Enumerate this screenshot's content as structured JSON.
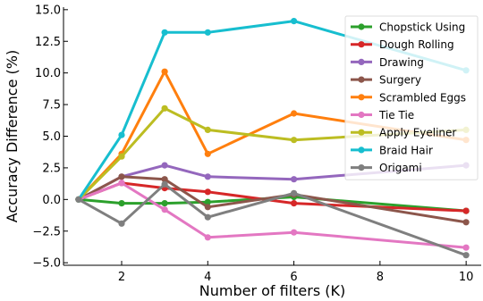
{
  "chart_data": {
    "type": "line",
    "title": "",
    "xlabel": "Number of filters (K)",
    "ylabel": "Accuracy Difference (%)",
    "xlim": [
      0.65,
      10.35
    ],
    "ylim": [
      -5.2,
      15.2
    ],
    "xticks": [
      2,
      4,
      6,
      8,
      10
    ],
    "xtick_labels": [
      "2",
      "4",
      "6",
      "8",
      "10"
    ],
    "yticks": [
      -5.0,
      -2.5,
      0.0,
      2.5,
      5.0,
      7.5,
      10.0,
      12.5,
      15.0
    ],
    "ytick_labels": [
      "−5.0",
      "−2.5",
      "0.0",
      "2.5",
      "5.0",
      "7.5",
      "10.0",
      "12.5",
      "15.0"
    ],
    "grid": false,
    "legend_position": "upper right",
    "x": [
      1,
      2,
      3,
      4,
      6,
      10
    ],
    "series": [
      {
        "name": "Chopstick Using",
        "color": "#2ca02c",
        "values": [
          0.0,
          -0.3,
          -0.3,
          -0.2,
          0.2,
          -0.9
        ]
      },
      {
        "name": "Dough Rolling",
        "color": "#d62728",
        "values": [
          0.0,
          1.3,
          0.9,
          0.6,
          -0.3,
          -0.9
        ]
      },
      {
        "name": "Drawing",
        "color": "#9467bd",
        "values": [
          0.0,
          1.8,
          2.7,
          1.8,
          1.6,
          2.7
        ]
      },
      {
        "name": "Surgery",
        "color": "#8c564b",
        "values": [
          0.0,
          1.8,
          1.6,
          -0.6,
          0.4,
          -1.8
        ]
      },
      {
        "name": "Scrambled Eggs",
        "color": "#ff7f0e",
        "values": [
          0.0,
          3.6,
          10.1,
          3.6,
          6.8,
          4.7
        ]
      },
      {
        "name": "Tie Tie",
        "color": "#e377c2",
        "values": [
          0.0,
          1.3,
          -0.8,
          -3.0,
          -2.6,
          -3.8
        ]
      },
      {
        "name": "Apply Eyeliner",
        "color": "#bcbd22",
        "values": [
          0.0,
          3.4,
          7.2,
          5.5,
          4.7,
          5.5
        ]
      },
      {
        "name": "Braid Hair",
        "color": "#17becf",
        "values": [
          0.0,
          5.1,
          13.2,
          13.2,
          14.1,
          10.2
        ]
      },
      {
        "name": "Origami",
        "color": "#7f7f7f",
        "values": [
          0.0,
          -1.9,
          1.2,
          -1.4,
          0.5,
          -4.4
        ]
      }
    ]
  }
}
